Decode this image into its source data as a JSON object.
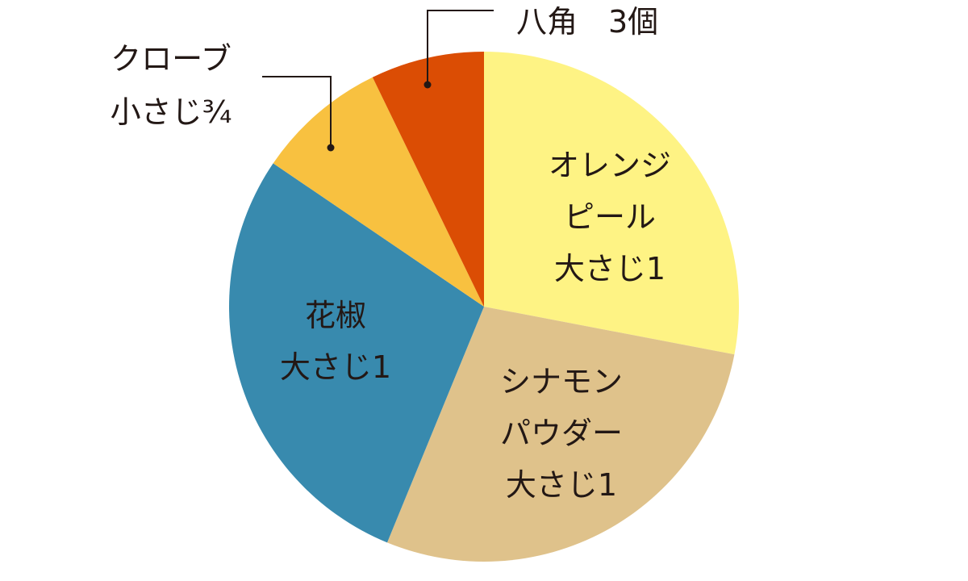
{
  "chart_data": {
    "type": "pie",
    "start": "top",
    "direction": "clockwise",
    "slices": [
      {
        "label_lines": [
          "オレンジ",
          "ピール",
          "大さじ1"
        ],
        "value": 28.0,
        "color": "#fef384"
      },
      {
        "label_lines": [
          "シナモン",
          "パウダー",
          "大さじ1"
        ],
        "value": 28.2,
        "color": "#dfc28b"
      },
      {
        "label_lines": [
          "花椒",
          "大さじ1"
        ],
        "value": 28.3,
        "color": "#388aae"
      },
      {
        "label_lines": [
          "クローブ",
          "小さじ¾"
        ],
        "value": 8.3,
        "color": "#f8c140"
      },
      {
        "label_lines": [
          "八角　3個"
        ],
        "value": 7.2,
        "color": "#db4d04"
      }
    ]
  }
}
